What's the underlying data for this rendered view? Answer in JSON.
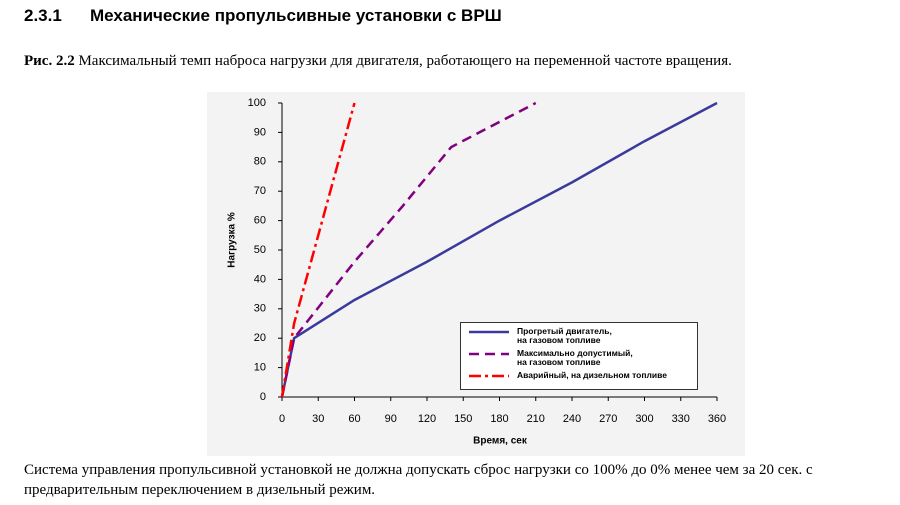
{
  "heading": {
    "number": "2.3.1",
    "title": "Механические пропульсивные установки с ВРШ"
  },
  "caption": {
    "label": "Рис. 2.2",
    "text": "Максимальный темп наброса нагрузки для двигателя, работающего на переменной частоте вращения."
  },
  "chart_data": {
    "type": "line",
    "xlabel": "Время, сек",
    "ylabel": "Нагрузка %",
    "xlim": [
      0,
      360
    ],
    "xticks": [
      0,
      30,
      60,
      90,
      120,
      150,
      180,
      210,
      240,
      270,
      300,
      330,
      360
    ],
    "ylim": [
      0,
      100
    ],
    "yticks": [
      0,
      10,
      20,
      30,
      40,
      50,
      60,
      70,
      80,
      90,
      100
    ],
    "legend": "lower right",
    "series": [
      {
        "name": "Прогретый двигатель,\nна газовом топливе",
        "color": "#3a3a9c",
        "style": "solid",
        "x": [
          0,
          10,
          60,
          120,
          180,
          240,
          300,
          360
        ],
        "values": [
          0,
          20,
          33,
          46,
          60,
          73,
          87,
          100
        ]
      },
      {
        "name": "Максимально допустимый,\nна газовом топливе",
        "color": "#800080",
        "style": "dashed",
        "x": [
          0,
          10,
          60,
          100,
          140,
          210
        ],
        "values": [
          0,
          20,
          46,
          65,
          85,
          100
        ]
      },
      {
        "name": "Аварийный, на дизельном топливе",
        "color": "#ff0000",
        "style": "dashdot",
        "x": [
          0,
          10,
          60
        ],
        "values": [
          0,
          25,
          100
        ]
      }
    ]
  },
  "paragraph": "Система управления пропульсивной установкой не должна допускать сброс нагрузки со 100% до 0% менее чем за 20 сек. с предварительным переключением в дизельный режим."
}
